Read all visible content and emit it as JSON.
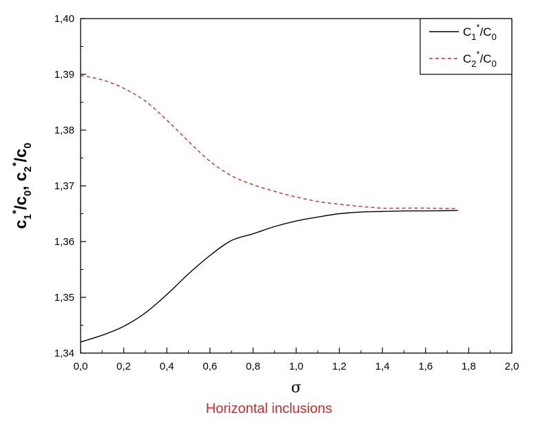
{
  "chart_data": {
    "type": "line",
    "xlabel": "σ",
    "ylabel_parts": {
      "c1": "c",
      "s1": "1",
      "star1": "*",
      "slash1": "/c",
      "s0a": "0",
      "comma": ", ",
      "c2": "c",
      "s2": "2",
      "star2": "*",
      "slash2": "/c",
      "s0b": "0"
    },
    "xlim": [
      0.0,
      2.0
    ],
    "ylim": [
      1.34,
      1.4
    ],
    "x_ticks": [
      "0,0",
      "0,2",
      "0,4",
      "0,6",
      "0,8",
      "1,0",
      "1,2",
      "1,4",
      "1,6",
      "1,8",
      "2,0"
    ],
    "y_ticks": [
      "1,34",
      "1,35",
      "1,36",
      "1,37",
      "1,38",
      "1,39",
      "1,40"
    ],
    "legend_position": "top-right",
    "series": [
      {
        "name_parts": {
          "c": "C",
          "sub": "1",
          "sup": "*",
          "rest": "/C",
          "sub2": "0"
        },
        "color": "#000000",
        "style": "solid",
        "x": [
          0.0,
          0.1,
          0.2,
          0.3,
          0.4,
          0.5,
          0.6,
          0.7,
          0.8,
          0.9,
          1.0,
          1.1,
          1.2,
          1.3,
          1.4,
          1.5,
          1.6,
          1.75
        ],
        "y": [
          1.342,
          1.3432,
          1.3448,
          1.3472,
          1.3505,
          1.3542,
          1.3575,
          1.3602,
          1.3614,
          1.3627,
          1.3637,
          1.3644,
          1.365,
          1.3653,
          1.3654,
          1.3655,
          1.3655,
          1.3656
        ]
      },
      {
        "name_parts": {
          "c": "C",
          "sub": "2",
          "sup": "*",
          "rest": "/C",
          "sub2": "0"
        },
        "color": "#d62728",
        "style": "dashed",
        "x": [
          0.0,
          0.1,
          0.2,
          0.3,
          0.4,
          0.5,
          0.6,
          0.7,
          0.8,
          0.9,
          1.0,
          1.1,
          1.2,
          1.3,
          1.4,
          1.5,
          1.6,
          1.75
        ],
        "y": [
          1.3898,
          1.389,
          1.3875,
          1.3852,
          1.3818,
          1.378,
          1.3744,
          1.3718,
          1.3702,
          1.369,
          1.368,
          1.3672,
          1.3667,
          1.3663,
          1.366,
          1.366,
          1.366,
          1.3659
        ]
      }
    ]
  },
  "caption": "Horizontal inclusions",
  "caption_color": "#d62728"
}
